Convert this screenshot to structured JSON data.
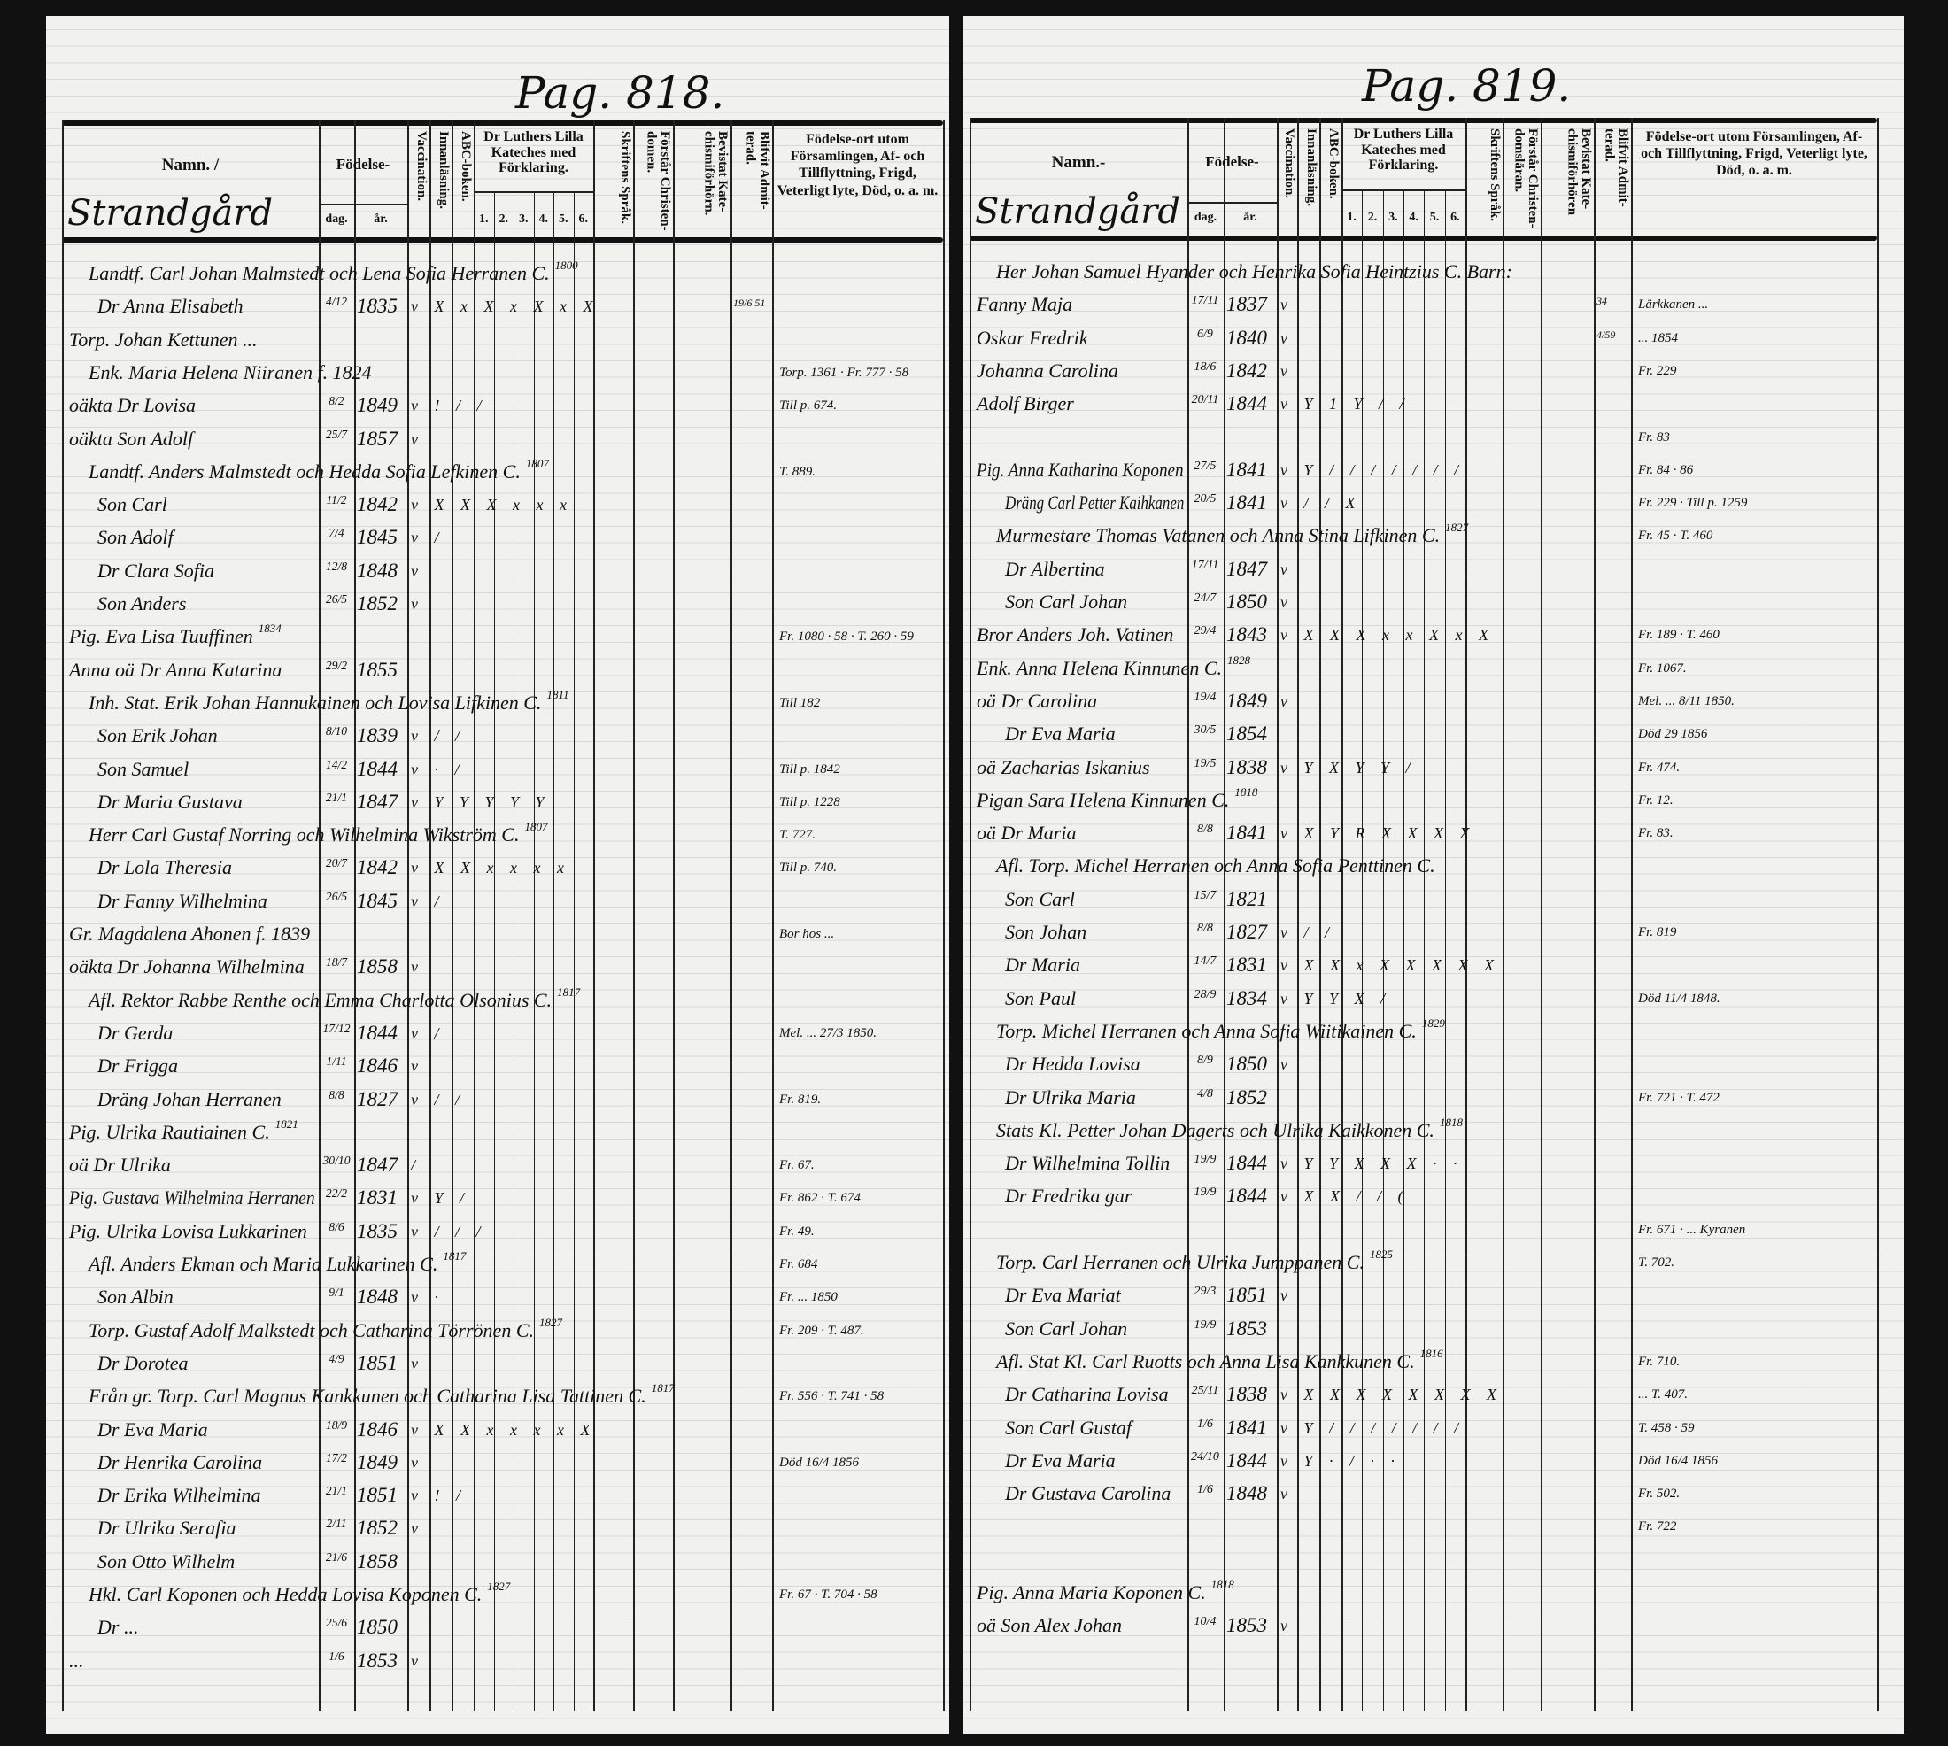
{
  "document": {
    "pages": [
      {
        "id": "left",
        "title": "Pag. 818.",
        "place": "Strandgård",
        "headers": {
          "name": "Namn. /",
          "birth": "Födelse-",
          "day": "dag.",
          "year": "år.",
          "vaccination": "Vaccination.",
          "reading": "Innanläsning.",
          "abc": "ABC-boken.",
          "catechism": "Dr Luthers Lilla Kateches med Förklaring.",
          "catechism_parts": [
            "1.",
            "2.",
            "3.",
            "4.",
            "5.",
            "6."
          ],
          "scripture": "Skriftens Språk.",
          "christendom": "Förstår Christen-domen.",
          "hearings": "Bevistat Kate-chismiförhörn.",
          "admitted": "Blifvit Admit-terad.",
          "remarks": "Födelse-ort utom Församlingen, Af- och Tillflyttning, Frigd, Veterligt lyte, Död, o. a. m."
        },
        "rows": [
          {
            "n": "Landtf. Carl Johan Malmstedt och Lena Sofia Herranen C.",
            "sup": "1800"
          },
          {
            "n": "Dr Anna Elisabeth",
            "d": "4/12",
            "y": "1835",
            "m": "v X x X x X x X",
            "a": "19/6 51"
          },
          {
            "n": "Torp. Johan Kettunen ..."
          },
          {
            "n": "Enk. Maria Helena Niiranen f. 1824",
            "r": "Torp. 1361 · Fr. 777 · 58"
          },
          {
            "n": "oäkta Dr Lovisa",
            "d": "8/2",
            "y": "1849",
            "m": "v ! / /",
            "r": "Till p. 674."
          },
          {
            "n": "oäkta Son Adolf",
            "d": "25/7",
            "y": "1857",
            "m": "v"
          },
          {
            "n": "Landtf. Anders Malmstedt och Hedda Sofia Lefkinen C.",
            "sup": "1807",
            "r": "T. 889."
          },
          {
            "n": "Son Carl",
            "d": "11/2",
            "y": "1842",
            "m": "v X X X x x x"
          },
          {
            "n": "Son Adolf",
            "d": "7/4",
            "y": "1845",
            "m": "v /"
          },
          {
            "n": "Dr Clara Sofia",
            "d": "12/8",
            "y": "1848",
            "m": "v"
          },
          {
            "n": "Son Anders",
            "d": "26/5",
            "y": "1852",
            "m": "v"
          },
          {
            "n": "Pig. Eva Lisa Tuuffinen",
            "sup": "1834",
            "r": "Fr. 1080 · 58 · T. 260 · 59"
          },
          {
            "n": "Anna oä Dr Anna Katarina",
            "d": "29/2",
            "y": "1855"
          },
          {
            "n": "Inh. Stat. Erik Johan Hannukainen och Lovisa Lifkinen C.",
            "sup": "1811",
            "r": "Till 182"
          },
          {
            "n": "Son Erik Johan",
            "d": "8/10",
            "y": "1839",
            "m": "v / /"
          },
          {
            "n": "Son Samuel",
            "d": "14/2",
            "y": "1844",
            "m": "v · /",
            "r": "Till p. 1842"
          },
          {
            "n": "Dr Maria Gustava",
            "d": "21/1",
            "y": "1847",
            "m": "v Y Y Y Y Y",
            "r": "Till p. 1228"
          },
          {
            "n": "Herr Carl Gustaf Norring och Wilhelmina Wikström C.",
            "sup": "1807",
            "r": "T. 727."
          },
          {
            "n": "Dr Lola Theresia",
            "d": "20/7",
            "y": "1842",
            "m": "v X X x x x x",
            "r": "Till p. 740."
          },
          {
            "n": "Dr Fanny Wilhelmina",
            "d": "26/5",
            "y": "1845",
            "m": "v /"
          },
          {
            "n": "Gr. Magdalena Ahonen f. 1839",
            "r": "Bor hos ..."
          },
          {
            "n": "oäkta Dr Johanna Wilhelmina",
            "d": "18/7",
            "y": "1858",
            "m": "v"
          },
          {
            "n": "Afl. Rektor Rabbe Renthe och Emma Charlotta Olsonius C.",
            "sup": "1817"
          },
          {
            "n": "Dr Gerda",
            "d": "17/12",
            "y": "1844",
            "m": "v /",
            "r": "Mel. ... 27/3 1850."
          },
          {
            "n": "Dr Frigga",
            "d": "1/11",
            "y": "1846",
            "m": "v"
          },
          {
            "n": "Dräng Johan Herranen",
            "d": "8/8",
            "y": "1827",
            "m": "v / /",
            "r": "Fr. 819."
          },
          {
            "n": "Pig. Ulrika Rautiainen C.",
            "sup": "1821"
          },
          {
            "n": "oä Dr Ulrika",
            "d": "30/10",
            "y": "1847",
            "m": "/",
            "r": "Fr. 67."
          },
          {
            "n": "Pig. Gustava Wilhelmina Herranen",
            "d": "22/2",
            "y": "1831",
            "m": "v Y /",
            "r": "Fr. 862 · T. 674"
          },
          {
            "n": "Pig. Ulrika Lovisa Lukkarinen",
            "d": "8/6",
            "y": "1835",
            "m": "v / / /",
            "r": "Fr. 49."
          },
          {
            "n": "Afl. Anders Ekman och Maria Lukkarinen C.",
            "sup": "1817",
            "r": "Fr. 684"
          },
          {
            "n": "Son Albin",
            "d": "9/1",
            "y": "1848",
            "m": "v ·",
            "r": "Fr. ... 1850"
          },
          {
            "n": "Torp. Gustaf Adolf Malkstedt och Catharina Törrönen C.",
            "sup": "1827",
            "r": "Fr. 209 · T. 487."
          },
          {
            "n": "Dr Dorotea",
            "d": "4/9",
            "y": "1851",
            "m": "v"
          },
          {
            "n": "Från gr. Torp. Carl Magnus Kankkunen och Catharina Lisa Tattinen C.",
            "sup": "1817",
            "r": "Fr. 556 · T. 741 · 58"
          },
          {
            "n": "Dr Eva Maria",
            "d": "18/9",
            "y": "1846",
            "m": "v X X x x x x X"
          },
          {
            "n": "Dr Henrika Carolina",
            "d": "17/2",
            "y": "1849",
            "m": "v",
            "r": "Död 16/4 1856"
          },
          {
            "n": "Dr Erika Wilhelmina",
            "d": "21/1",
            "y": "1851",
            "m": "v ! /"
          },
          {
            "n": "Dr Ulrika Serafia",
            "d": "2/11",
            "y": "1852",
            "m": "v"
          },
          {
            "n": "Son Otto Wilhelm",
            "d": "21/6",
            "y": "1858"
          },
          {
            "n": "Hkl. Carl Koponen och Hedda Lovisa Koponen C.",
            "sup": "1827",
            "r": "Fr. 67 · T. 704 · 58"
          },
          {
            "n": "Dr ...",
            "d": "25/6",
            "y": "1850"
          },
          {
            "n": "...",
            "d": "1/6",
            "y": "1853",
            "m": "v"
          }
        ]
      },
      {
        "id": "right",
        "title": "Pag. 819.",
        "place": "Strandgård",
        "headers": {
          "name": "Namn.-",
          "birth": "Födelse-",
          "day": "dag.",
          "year": "år.",
          "vaccination": "Vaccination.",
          "reading": "Innanläsning.",
          "abc": "ABC-boken.",
          "catechism": "Dr Luthers Lilla Kateches med Förklaring.",
          "catechism_parts": [
            "1.",
            "2.",
            "3.",
            "4.",
            "5.",
            "6."
          ],
          "scripture": "Skriftens Språk.",
          "christendom": "Förstår Christen-domsläran.",
          "hearings": "Bevistat Kate-chismiförhören",
          "admitted": "Blifvit Admit-terad.",
          "remarks": "Födelse-ort utom Församlingen, Af- och Tillflyttning, Frigd, Veterligt lyte, Död, o. a. m."
        },
        "rows": [
          {
            "n": "Her Johan Samuel Hyander och Henrika Sofia Heintzius C. Barn:"
          },
          {
            "n": "Fanny Maja",
            "d": "17/11",
            "y": "1837",
            "m": "v",
            "a": "34",
            "r": "Lärkkanen ..."
          },
          {
            "n": "Oskar Fredrik",
            "d": "6/9",
            "y": "1840",
            "m": "v",
            "a": "4/59",
            "r": "... 1854"
          },
          {
            "n": "Johanna Carolina",
            "d": "18/6",
            "y": "1842",
            "m": "v",
            "r": "Fr. 229"
          },
          {
            "n": "Adolf Birger",
            "d": "20/11",
            "y": "1844",
            "m": "v Y 1 Y / /"
          },
          {
            "n": "",
            "r": "Fr. 83"
          },
          {
            "n": "Pig. Anna Katharina Koponen",
            "d": "27/5",
            "y": "1841",
            "m": "v Y / / / / / / /",
            "r": "Fr. 84 · 86"
          },
          {
            "n": "Dräng Carl Petter Kaihkanen",
            "d": "20/5",
            "y": "1841",
            "m": "v / / X",
            "r": "Fr. 229 · Till p. 1259"
          },
          {
            "n": "Murmestare Thomas Vatanen och Anna Stina Lifkinen C.",
            "sup": "1827",
            "r": "Fr. 45 · T. 460"
          },
          {
            "n": "Dr Albertina",
            "d": "17/11",
            "y": "1847",
            "m": "v"
          },
          {
            "n": "Son Carl Johan",
            "d": "24/7",
            "y": "1850",
            "m": "v"
          },
          {
            "n": "Bror Anders Joh. Vatinen",
            "d": "29/4",
            "y": "1843",
            "m": "v X X X x x X x X",
            "r": "Fr. 189 · T. 460"
          },
          {
            "n": "Enk. Anna Helena Kinnunen C.",
            "sup": "1828",
            "r": "Fr. 1067."
          },
          {
            "n": "oä Dr Carolina",
            "d": "19/4",
            "y": "1849",
            "m": "v",
            "r": "Mel. ... 8/11 1850."
          },
          {
            "n": "Dr Eva Maria",
            "d": "30/5",
            "y": "1854",
            "r": "Död 29 1856"
          },
          {
            "n": "oä Zacharias Iskanius",
            "d": "19/5",
            "y": "1838",
            "m": "v Y X Y Y /",
            "r": "Fr. 474."
          },
          {
            "n": "Pigan Sara Helena Kinnunen C.",
            "sup": "1818",
            "r": "Fr. 12."
          },
          {
            "n": "oä Dr Maria",
            "d": "8/8",
            "y": "1841",
            "m": "v X Y R X X X X",
            "r": "Fr. 83."
          },
          {
            "n": "Afl. Torp. Michel Herranen och Anna Sofia Penttinen C."
          },
          {
            "n": "Son Carl",
            "d": "15/7",
            "y": "1821"
          },
          {
            "n": "Son Johan",
            "d": "8/8",
            "y": "1827",
            "m": "v / /",
            "r": "Fr. 819"
          },
          {
            "n": "Dr Maria",
            "d": "14/7",
            "y": "1831",
            "m": "v X X x X X X X X"
          },
          {
            "n": "Son Paul",
            "d": "28/9",
            "y": "1834",
            "m": "v Y Y X /",
            "r": "Död 11/4 1848."
          },
          {
            "n": "Torp. Michel Herranen och Anna Sofia Wiitikainen C.",
            "sup": "1829"
          },
          {
            "n": "Dr Hedda Lovisa",
            "d": "8/9",
            "y": "1850",
            "m": "v"
          },
          {
            "n": "Dr Ulrika Maria",
            "d": "4/8",
            "y": "1852",
            "r": "Fr. 721 · T. 472"
          },
          {
            "n": "Stats Kl. Petter Johan Dagerts och Ulrika Kaikkonen C.",
            "sup": "1818"
          },
          {
            "n": "Dr Wilhelmina Tollin",
            "d": "19/9",
            "y": "1844",
            "m": "v Y Y X X X · ·"
          },
          {
            "n": "Dr Fredrika gar",
            "d": "19/9",
            "y": "1844",
            "m": "v X X / / ("
          },
          {
            "n": "",
            "r": "Fr. 671 · ... Kyranen"
          },
          {
            "n": "Torp. Carl Herranen och Ulrika Jumppanen C.",
            "sup": "1825",
            "r": "T. 702."
          },
          {
            "n": "Dr Eva Mariat",
            "d": "29/3",
            "y": "1851",
            "m": "v"
          },
          {
            "n": "Son Carl Johan",
            "d": "19/9",
            "y": "1853"
          },
          {
            "n": "Afl. Stat Kl. Carl Ruotts och Anna Lisa Kankkunen C.",
            "sup": "1816",
            "r": "Fr. 710."
          },
          {
            "n": "Dr Catharina Lovisa",
            "d": "25/11",
            "y": "1838",
            "m": "v X X X X X X X X",
            "r": "... T. 407."
          },
          {
            "n": "Son Carl Gustaf",
            "d": "1/6",
            "y": "1841",
            "m": "v Y / / / / / / /",
            "r": "T. 458 · 59"
          },
          {
            "n": "Dr Eva Maria",
            "d": "24/10",
            "y": "1844",
            "m": "v Y · / · ·",
            "r": "Död 16/4 1856"
          },
          {
            "n": "Dr Gustava Carolina",
            "d": "1/6",
            "y": "1848",
            "m": "v",
            "r": "Fr. 502."
          },
          {
            "n": "",
            "r": "Fr. 722"
          },
          {
            "n": ""
          },
          {
            "n": "Pig. Anna Maria Koponen C.",
            "sup": "1818"
          },
          {
            "n": "oä Son Alex Johan",
            "d": "10/4",
            "y": "1853",
            "m": "v"
          }
        ]
      }
    ]
  }
}
